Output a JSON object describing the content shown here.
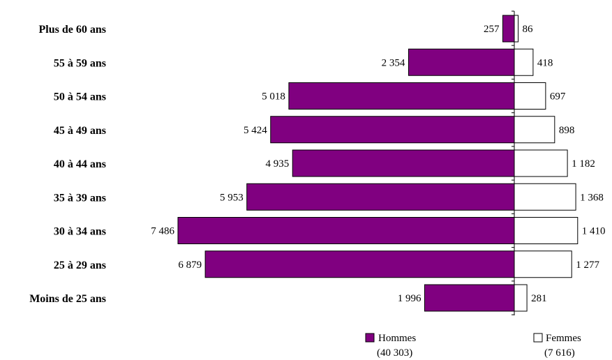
{
  "chart_data": {
    "type": "bar",
    "orientation": "horizontal-pyramid",
    "categories": [
      "Plus de 60 ans",
      "55 à 59 ans",
      "50 à 54 ans",
      "45 à 49 ans",
      "40 à 44 ans",
      "35 à 39 ans",
      "30 à 34 ans",
      "25 à 29 ans",
      "Moins de 25 ans"
    ],
    "series": [
      {
        "name": "Hommes",
        "total_label": "(40 303)",
        "color": "#800080",
        "side": "left",
        "values": [
          257,
          2354,
          5018,
          5424,
          4935,
          5953,
          7486,
          6879,
          1996
        ],
        "value_labels": [
          "257",
          "2 354",
          "5 018",
          "5 424",
          "4 935",
          "5 953",
          "7 486",
          "6 879",
          "1 996"
        ]
      },
      {
        "name": "Femmes",
        "total_label": "(7 616)",
        "color": "#ffffff",
        "side": "right",
        "values": [
          86,
          418,
          697,
          898,
          1182,
          1368,
          1410,
          1277,
          281
        ],
        "value_labels": [
          "86",
          "418",
          "697",
          "898",
          "1 182",
          "1 368",
          "1 410",
          "1 277",
          "281"
        ]
      }
    ],
    "xlabel": "",
    "ylabel": "",
    "grid": false,
    "legend_position": "bottom"
  }
}
